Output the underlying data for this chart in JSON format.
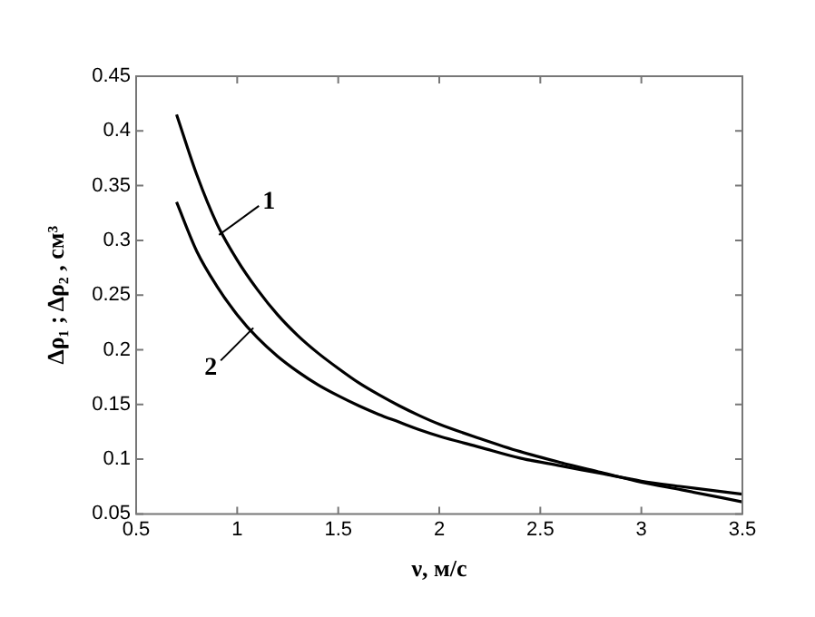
{
  "chart_data": {
    "type": "line",
    "xlabel": "ν, м/с",
    "ylabel": "Δρ₁ ; Δρ₂ , см³",
    "xlim": [
      0.5,
      3.5
    ],
    "xticks": [
      0.5,
      1,
      1.5,
      2,
      2.5,
      3,
      3.5
    ],
    "ylim": [
      0.05,
      0.45
    ],
    "yticks": [
      0.05,
      0.1,
      0.15,
      0.2,
      0.25,
      0.3,
      0.35,
      0.4,
      0.45
    ],
    "x": [
      0.7,
      0.8,
      0.9,
      1.0,
      1.1,
      1.2,
      1.3,
      1.4,
      1.5,
      1.6,
      1.7,
      1.8,
      1.9,
      2.0,
      2.2,
      2.4,
      2.6,
      2.8,
      3.0,
      3.2,
      3.5
    ],
    "series": [
      {
        "color": "#000000",
        "values": [
          0.415,
          0.36,
          0.315,
          0.282,
          0.255,
          0.232,
          0.213,
          0.197,
          0.183,
          0.17,
          0.159,
          0.149,
          0.14,
          0.132,
          0.119,
          0.107,
          0.097,
          0.088,
          0.079,
          0.072,
          0.061
        ]
      },
      {
        "color": "#000000",
        "values": [
          0.335,
          0.29,
          0.258,
          0.232,
          0.211,
          0.194,
          0.18,
          0.168,
          0.158,
          0.149,
          0.141,
          0.134,
          0.127,
          0.121,
          0.111,
          0.101,
          0.094,
          0.087,
          0.08,
          0.075,
          0.068
        ]
      }
    ],
    "annotations": [
      {
        "text": "1",
        "x": 0.91,
        "y": 0.305
      },
      {
        "text": "2",
        "x": 1.08,
        "y": 0.22
      }
    ],
    "grid": false,
    "legend": false,
    "marker": "none",
    "line_style": "solid"
  }
}
